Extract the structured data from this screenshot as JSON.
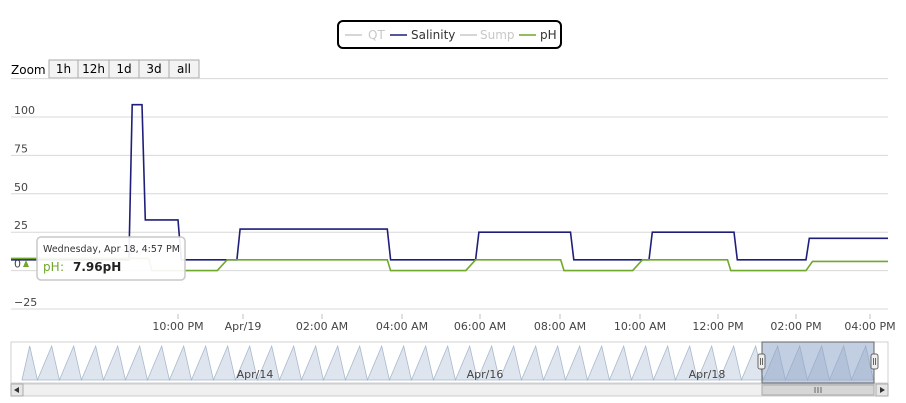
{
  "legend": {
    "items": [
      {
        "name": "QT",
        "color": "#c8c8c8",
        "active": false
      },
      {
        "name": "Salinity",
        "color": "#1f1f7a",
        "active": true
      },
      {
        "name": "Sump",
        "color": "#c8c8c8",
        "active": false
      },
      {
        "name": "pH",
        "color": "#6fa82c",
        "active": true
      }
    ]
  },
  "zoom": {
    "label": "Zoom",
    "buttons": [
      "1h",
      "12h",
      "1d",
      "3d",
      "all"
    ]
  },
  "tooltip": {
    "header": "Wednesday, Apr 18, 4:57 PM",
    "series_label": "pH",
    "value": "7.96pH"
  },
  "navigator": {
    "labels": [
      "Apr/14",
      "Apr/16",
      "Apr/18"
    ]
  },
  "chart_data": {
    "type": "line",
    "title": "",
    "xlabel": "",
    "ylabel": "",
    "x_ticks": [
      "10:00 PM",
      "Apr/19",
      "02:00 AM",
      "04:00 AM",
      "06:00 AM",
      "08:00 AM",
      "10:00 AM",
      "12:00 PM",
      "02:00 PM",
      "04:00 PM"
    ],
    "y_ticks": [
      -25,
      0,
      25,
      50,
      75,
      100
    ],
    "ylim": [
      -25,
      100
    ],
    "grid": true,
    "series": [
      {
        "name": "Salinity",
        "color": "#1f1f7a",
        "x": [
          "Apr 18 4:57 PM",
          "Apr 18 8:45 PM",
          "Apr 18 8:50 PM",
          "Apr 18 9:05 PM",
          "Apr 18 9:10 PM",
          "Apr 18 10:00 PM",
          "Apr 18 10:05 PM",
          "Apr 18 11:30 PM",
          "Apr 18 11:35 PM",
          "Apr 19 3:20 AM",
          "Apr 19 3:25 AM",
          "Apr 19 5:35 AM",
          "Apr 19 5:40 AM",
          "Apr 19 8:00 AM",
          "Apr 19 8:05 AM",
          "Apr 19 10:00 AM",
          "Apr 19 10:05 AM",
          "Apr 19 12:10 PM",
          "Apr 19 12:15 PM",
          "Apr 19 2:00 PM",
          "Apr 19 2:05 PM",
          "Apr 19 4:20 PM"
        ],
        "y": [
          7,
          7,
          108,
          108,
          33,
          33,
          7,
          7,
          27,
          27,
          7,
          7,
          25,
          25,
          7,
          7,
          25,
          25,
          7,
          7,
          21,
          21
        ]
      },
      {
        "name": "pH",
        "color": "#6fa82c",
        "x": [
          "Apr 18 4:57 PM",
          "Apr 18 9:15 PM",
          "Apr 18 9:20 PM",
          "Apr 18 10:00 PM",
          "Apr 18 11:00 PM",
          "Apr 18 11:15 PM",
          "Apr 19 3:20 AM",
          "Apr 19 3:25 AM",
          "Apr 19 5:20 AM",
          "Apr 19 5:35 AM",
          "Apr 19 7:45 AM",
          "Apr 19 7:50 AM",
          "Apr 19 9:35 AM",
          "Apr 19 9:50 AM",
          "Apr 19 12:00 PM",
          "Apr 19 12:05 PM",
          "Apr 19 2:00 PM",
          "Apr 19 2:10 PM",
          "Apr 19 4:20 PM"
        ],
        "y": [
          7.96,
          7.96,
          0,
          0,
          0,
          7,
          7,
          0,
          0,
          7,
          7,
          0,
          0,
          7,
          7,
          0,
          0,
          6,
          6
        ]
      }
    ]
  },
  "colors": {
    "grid": "#d8d8d8",
    "navigator_fill": "#c8d3e3",
    "navigator_selected": "#8fa6c8",
    "axis": "#c0c0c0"
  }
}
